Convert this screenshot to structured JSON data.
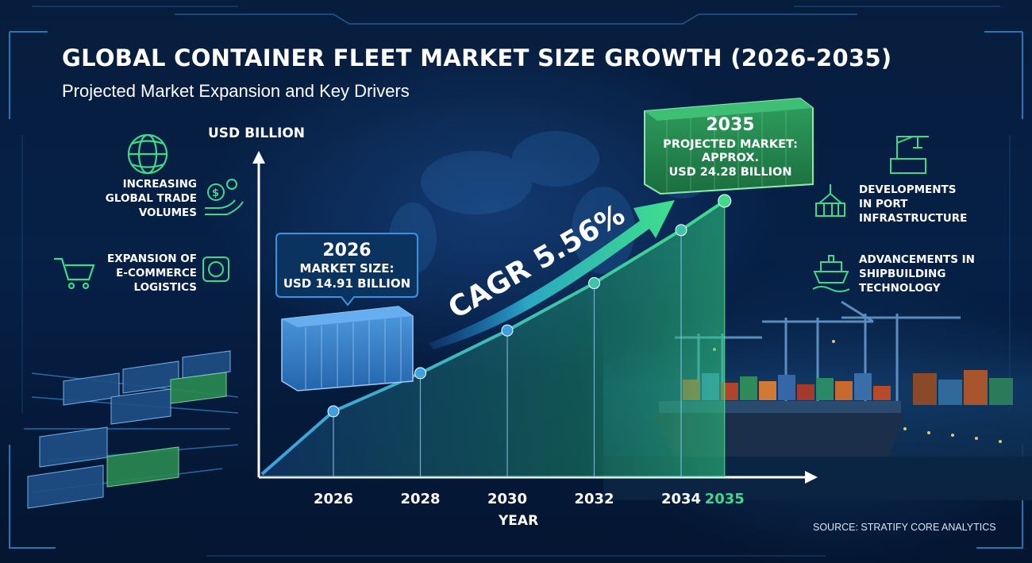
{
  "header": {
    "title": "GLOBAL CONTAINER FLEET MARKET SIZE GROWTH (2026-2035)",
    "subtitle": "Projected Market Expansion and Key Drivers"
  },
  "drivers_left": [
    {
      "icon": "globe-icon",
      "lines": [
        "INCREASING",
        "GLOBAL TRADE",
        "VOLUMES"
      ],
      "secondary_icon": "dollar-hand-icon"
    },
    {
      "icon": "shopping-cart-icon",
      "lines": [
        "EXPANSION OF",
        "E-COMMERCE",
        "LOGISTICS"
      ],
      "secondary_icon": "online-cart-icon"
    }
  ],
  "drivers_right": [
    {
      "icon": "port-crane-icon",
      "lines": [
        "DEVELOPMENTS",
        "IN PORT",
        "INFRASTRUCTURE"
      ]
    },
    {
      "icon": "ship-icon",
      "lines": [
        "ADVANCEMENTS IN",
        "SHIPBUILDING",
        "TECHNOLOGY"
      ]
    }
  ],
  "callouts": {
    "start": {
      "year": "2026",
      "line1": "MARKET SIZE:",
      "line2": "USD 14.91 BILLION"
    },
    "end": {
      "year": "2035",
      "line1": "PROJECTED MARKET:",
      "line2": "APPROX.",
      "line3": "USD 24.28 BILLION"
    }
  },
  "cagr_label": "CAGR 5.56%",
  "source": "SOURCE: STRATIFY CORE ANALYTICS",
  "colors": {
    "background": "#062046",
    "line_start": "#3fa0e0",
    "line_end": "#3fd98a",
    "callout_blue": "#2b7ac6",
    "callout_green": "#2e9a5a",
    "highlight_year": "#3fd98a"
  },
  "chart_data": {
    "type": "line",
    "ylabel": "USD BILLION",
    "xlabel": "YEAR",
    "x": [
      "2026",
      "2028",
      "2030",
      "2032",
      "2034",
      "2035"
    ],
    "values": [
      14.91,
      16.61,
      18.51,
      20.62,
      22.98,
      24.28
    ],
    "ylim": [
      10,
      26
    ],
    "grid": false,
    "highlight_category": "2035"
  }
}
